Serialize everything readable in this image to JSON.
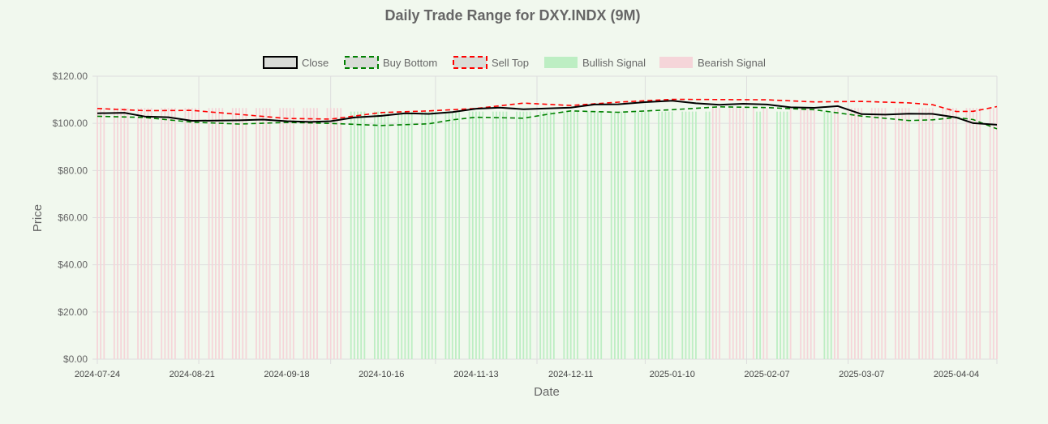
{
  "chart_data": {
    "type": "line",
    "title": "Daily Trade Range for DXY.INDX (9M)",
    "xlabel": "Date",
    "ylabel": "Price",
    "ylim": [
      0,
      120
    ],
    "y_ticks": [
      "$0.00",
      "$20.00",
      "$40.00",
      "$60.00",
      "$80.00",
      "$100.00",
      "$120.00"
    ],
    "x_ticks": [
      "2024-07-24",
      "2024-08-21",
      "2024-09-18",
      "2024-10-16",
      "2024-11-13",
      "2024-12-11",
      "2025-01-10",
      "2025-02-07",
      "2025-03-07",
      "2025-04-04"
    ],
    "x_range": [
      "2024-07-24",
      "2025-04-16"
    ],
    "grid": true,
    "legend_position": "top",
    "legend": [
      "Close",
      "Buy Bottom",
      "Sell Top",
      "Bullish Signal",
      "Bearish Signal"
    ],
    "colors": {
      "close": "#000000",
      "buy_bottom": "#008000",
      "sell_top": "#ff0000",
      "bullish": "#bdeec3",
      "bearish": "#f5d5d9",
      "background": "#f1f8ee",
      "grid": "#dddddd"
    },
    "series": [
      {
        "name": "Close",
        "style": "solid",
        "points": [
          [
            "2024-07-24",
            104.3
          ],
          [
            "2024-08-01",
            104.5
          ],
          [
            "2024-08-07",
            102.9
          ],
          [
            "2024-08-14",
            102.6
          ],
          [
            "2024-08-21",
            101.1
          ],
          [
            "2024-08-28",
            101.2
          ],
          [
            "2024-09-04",
            101.3
          ],
          [
            "2024-09-11",
            101.6
          ],
          [
            "2024-09-18",
            100.9
          ],
          [
            "2024-09-25",
            100.6
          ],
          [
            "2024-10-01",
            100.9
          ],
          [
            "2024-10-08",
            102.5
          ],
          [
            "2024-10-16",
            103.2
          ],
          [
            "2024-10-23",
            104.3
          ],
          [
            "2024-10-30",
            104.0
          ],
          [
            "2024-11-06",
            104.8
          ],
          [
            "2024-11-13",
            106.2
          ],
          [
            "2024-11-20",
            106.7
          ],
          [
            "2024-11-27",
            106.0
          ],
          [
            "2024-12-04",
            106.3
          ],
          [
            "2024-12-11",
            106.7
          ],
          [
            "2024-12-18",
            108.0
          ],
          [
            "2024-12-25",
            108.1
          ],
          [
            "2025-01-02",
            109.0
          ],
          [
            "2025-01-10",
            109.6
          ],
          [
            "2025-01-17",
            108.5
          ],
          [
            "2025-01-24",
            107.9
          ],
          [
            "2025-01-31",
            108.3
          ],
          [
            "2025-02-07",
            108.0
          ],
          [
            "2025-02-14",
            106.8
          ],
          [
            "2025-02-21",
            106.6
          ],
          [
            "2025-02-28",
            107.3
          ],
          [
            "2025-03-07",
            103.9
          ],
          [
            "2025-03-14",
            103.7
          ],
          [
            "2025-03-21",
            104.1
          ],
          [
            "2025-03-28",
            104.0
          ],
          [
            "2025-04-04",
            102.5
          ],
          [
            "2025-04-09",
            100.1
          ],
          [
            "2025-04-16",
            99.4
          ]
        ]
      },
      {
        "name": "Buy Bottom",
        "style": "dashed",
        "points": [
          [
            "2024-07-24",
            103.0
          ],
          [
            "2024-08-07",
            102.5
          ],
          [
            "2024-08-21",
            100.5
          ],
          [
            "2024-09-04",
            99.7
          ],
          [
            "2024-09-18",
            100.4
          ],
          [
            "2024-10-01",
            100.0
          ],
          [
            "2024-10-16",
            99.1
          ],
          [
            "2024-10-30",
            99.8
          ],
          [
            "2024-11-06",
            101.5
          ],
          [
            "2024-11-13",
            102.6
          ],
          [
            "2024-11-27",
            102.2
          ],
          [
            "2024-12-04",
            103.8
          ],
          [
            "2024-12-11",
            105.3
          ],
          [
            "2024-12-25",
            104.7
          ],
          [
            "2025-01-10",
            105.8
          ],
          [
            "2025-01-24",
            107.0
          ],
          [
            "2025-02-07",
            106.7
          ],
          [
            "2025-02-21",
            105.8
          ],
          [
            "2025-03-07",
            103.1
          ],
          [
            "2025-03-21",
            101.2
          ],
          [
            "2025-03-28",
            101.5
          ],
          [
            "2025-04-04",
            102.5
          ],
          [
            "2025-04-09",
            101.6
          ],
          [
            "2025-04-16",
            97.7
          ]
        ]
      },
      {
        "name": "Sell Top",
        "style": "dashed",
        "points": [
          [
            "2024-07-24",
            106.3
          ],
          [
            "2024-08-07",
            105.4
          ],
          [
            "2024-08-21",
            105.5
          ],
          [
            "2024-09-04",
            103.8
          ],
          [
            "2024-09-18",
            102.1
          ],
          [
            "2024-10-01",
            101.8
          ],
          [
            "2024-10-16",
            104.6
          ],
          [
            "2024-10-30",
            105.3
          ],
          [
            "2024-11-13",
            106.3
          ],
          [
            "2024-11-27",
            108.6
          ],
          [
            "2024-12-11",
            107.6
          ],
          [
            "2024-12-25",
            109.0
          ],
          [
            "2025-01-10",
            110.2
          ],
          [
            "2025-01-24",
            110.1
          ],
          [
            "2025-02-07",
            110.0
          ],
          [
            "2025-02-21",
            109.1
          ],
          [
            "2025-03-07",
            109.3
          ],
          [
            "2025-03-21",
            108.7
          ],
          [
            "2025-03-28",
            107.9
          ],
          [
            "2025-04-04",
            105.0
          ],
          [
            "2025-04-09",
            105.1
          ],
          [
            "2025-04-16",
            107.1
          ]
        ]
      }
    ],
    "signal_periods": [
      {
        "signal": "Bearish Signal",
        "start": "2024-07-24",
        "end": "2024-10-04"
      },
      {
        "signal": "Bullish Signal",
        "start": "2024-10-07",
        "end": "2025-01-21"
      },
      {
        "signal": "Bearish Signal",
        "start": "2025-01-22",
        "end": "2025-02-03"
      },
      {
        "signal": "Bullish Signal",
        "start": "2025-02-04",
        "end": "2025-02-05"
      },
      {
        "signal": "Bearish Signal",
        "start": "2025-02-06",
        "end": "2025-02-07"
      },
      {
        "signal": "Bullish Signal",
        "start": "2025-02-10",
        "end": "2025-02-13"
      },
      {
        "signal": "Bearish Signal",
        "start": "2025-02-14",
        "end": "2025-02-21"
      },
      {
        "signal": "Bullish Signal",
        "start": "2025-02-24",
        "end": "2025-02-26"
      },
      {
        "signal": "Bearish Signal",
        "start": "2025-02-27",
        "end": "2025-04-16"
      }
    ]
  }
}
